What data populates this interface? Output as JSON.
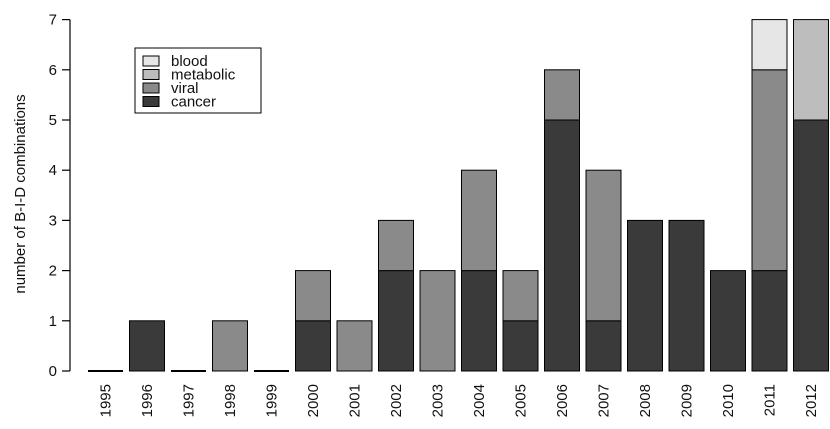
{
  "chart_data": {
    "type": "bar",
    "stacked": true,
    "title": "",
    "xlabel": "",
    "ylabel": "number of B-I-D combinations",
    "ylim": [
      0,
      7
    ],
    "yticks": [
      0,
      1,
      2,
      3,
      4,
      5,
      6,
      7
    ],
    "grid": false,
    "legend_position": "top-left",
    "categories": [
      "1995",
      "1996",
      "1997",
      "1998",
      "1999",
      "2000",
      "2001",
      "2002",
      "2003",
      "2004",
      "2005",
      "2006",
      "2007",
      "2008",
      "2009",
      "2010",
      "2011",
      "2012"
    ],
    "series": [
      {
        "name": "cancer",
        "color": "#3a3a3a",
        "values": [
          0,
          1,
          0,
          0,
          0,
          1,
          0,
          2,
          0,
          2,
          1,
          5,
          1,
          3,
          3,
          2,
          2,
          5
        ]
      },
      {
        "name": "viral",
        "color": "#8a8a8a",
        "values": [
          0,
          0,
          0,
          1,
          0,
          1,
          1,
          1,
          2,
          2,
          1,
          1,
          3,
          0,
          0,
          0,
          4,
          0
        ]
      },
      {
        "name": "metabolic",
        "color": "#bdbdbd",
        "values": [
          0,
          0,
          0,
          0,
          0,
          0,
          0,
          0,
          0,
          0,
          0,
          0,
          0,
          0,
          0,
          0,
          0,
          2
        ]
      },
      {
        "name": "blood",
        "color": "#e6e6e6",
        "values": [
          0,
          0,
          0,
          0,
          0,
          0,
          0,
          0,
          0,
          0,
          0,
          0,
          0,
          0,
          0,
          0,
          1,
          0
        ]
      }
    ],
    "legend_order": [
      "blood",
      "metabolic",
      "viral",
      "cancer"
    ]
  }
}
